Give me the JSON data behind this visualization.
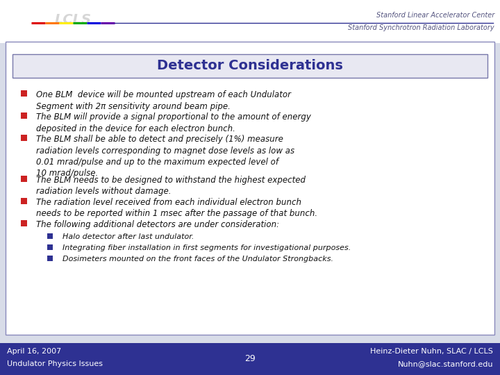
{
  "title": "Detector Considerations",
  "title_color": "#2E3192",
  "title_fontsize": 14,
  "slide_bg": "#D8DCE8",
  "content_bg": "#FFFFFF",
  "footer_bg": "#2E3192",
  "footer_left1": "April 16, 2007",
  "footer_left2": "Undulator Physics Issues",
  "footer_center": "29",
  "footer_right1": "Heinz-Dieter Nuhn, SLAC / LCLS",
  "footer_right2": "Nuhn@slac.stanford.edu",
  "footer_color": "#FFFFFF",
  "footer_fontsize": 8,
  "slac_right1": "Stanford Linear Accelerator Center",
  "slac_right2": "Stanford Synchrotron Radiation Laboratory",
  "slac_color": "#555580",
  "bullet_color_main": "#CC2222",
  "bullet_color_sub": "#2E3192",
  "content_fontsize": 8.5,
  "sub_fontsize": 8.0,
  "bullet_main": [
    "One BLM  device will be mounted upstream of each Undulator\nSegment with 2π sensitivity around beam pipe.",
    "The BLM will provide a signal proportional to the amount of energy\ndeposited in the device for each electron bunch.",
    "The BLM shall be able to detect and precisely (1%) measure\nradiation levels corresponding to magnet dose levels as low as\n0.01 mrad/pulse and up to the maximum expected level of\n10 mrad/pulse.",
    "The BLM needs to be designed to withstand the highest expected\nradiation levels without damage.",
    "The radiation level received from each individual electron bunch\nneeds to be reported within 1 msec after the passage of that bunch.",
    "The following additional detectors are under consideration:"
  ],
  "bullet_sub": [
    "Halo detector after last undulator.",
    "Integrating fiber installation in first segments for investigational purposes.",
    "Dosimeters mounted on the front faces of the Undulator Strongbacks."
  ],
  "rainbow_colors": [
    "#DD0000",
    "#FF7700",
    "#FFEE00",
    "#00AA00",
    "#0000DD",
    "#6600AA"
  ],
  "header_line_color": "#2E3192"
}
